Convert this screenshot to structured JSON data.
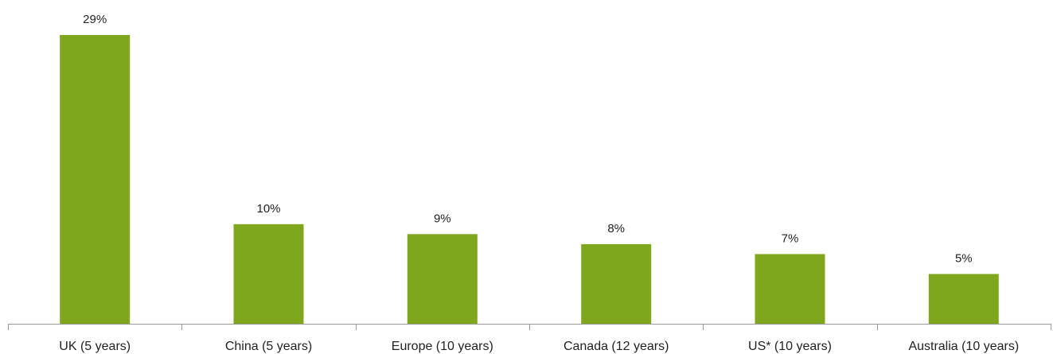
{
  "chart_data": {
    "type": "bar",
    "categories": [
      "UK (5 years)",
      "China (5 years)",
      "Europe (10 years)",
      "Canada (12 years)",
      "US* (10 years)",
      "Australia (10 years)"
    ],
    "values": [
      29,
      10,
      9,
      8,
      7,
      5
    ],
    "value_labels": [
      "29%",
      "10%",
      "9%",
      "8%",
      "7%",
      "5%"
    ],
    "value_suffix": "%",
    "title": "",
    "xlabel": "",
    "ylabel": "",
    "ylim": [
      0,
      29
    ],
    "grid": false,
    "legend": "none",
    "bar_color": "#7fa71e"
  }
}
